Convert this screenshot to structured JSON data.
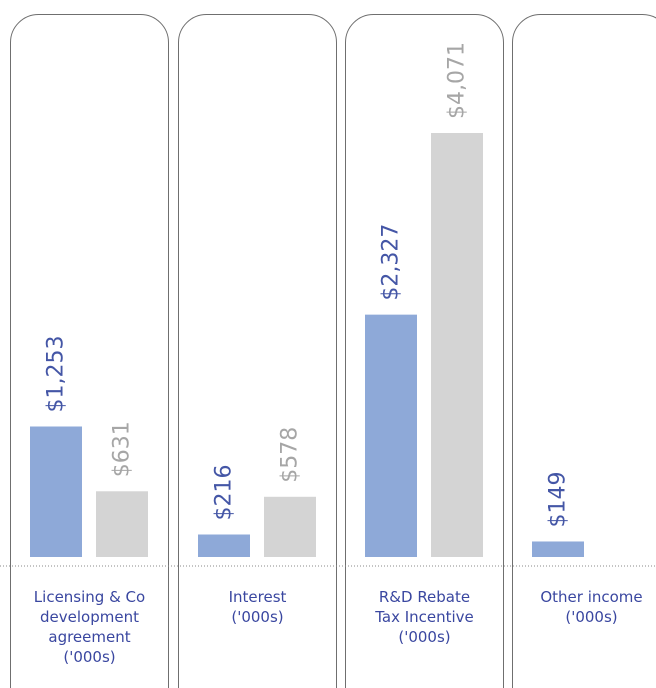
{
  "chart_data": {
    "type": "bar",
    "categories": [
      [
        "Licensing & Co",
        "development",
        "agreement",
        "('000s)"
      ],
      [
        "Interest",
        "('000s)"
      ],
      [
        "R&D Rebate",
        "Tax Incentive",
        "('000s)"
      ],
      [
        "Other income",
        "('000s)"
      ]
    ],
    "series": [
      {
        "color": "#8ea9d8",
        "label_color": "#4456a6",
        "values": [
          1253,
          216,
          2327,
          149
        ],
        "labels": [
          "$1,253",
          "$216",
          "$2,327",
          "$149"
        ]
      },
      {
        "color": "#d4d4d4",
        "label_color": "#a6a6a6",
        "values": [
          631,
          578,
          4071,
          null
        ],
        "labels": [
          "$631",
          "$578",
          "$4,071",
          ""
        ]
      }
    ],
    "ylim": [
      0,
      4071
    ],
    "grid": false,
    "legend": "none"
  }
}
